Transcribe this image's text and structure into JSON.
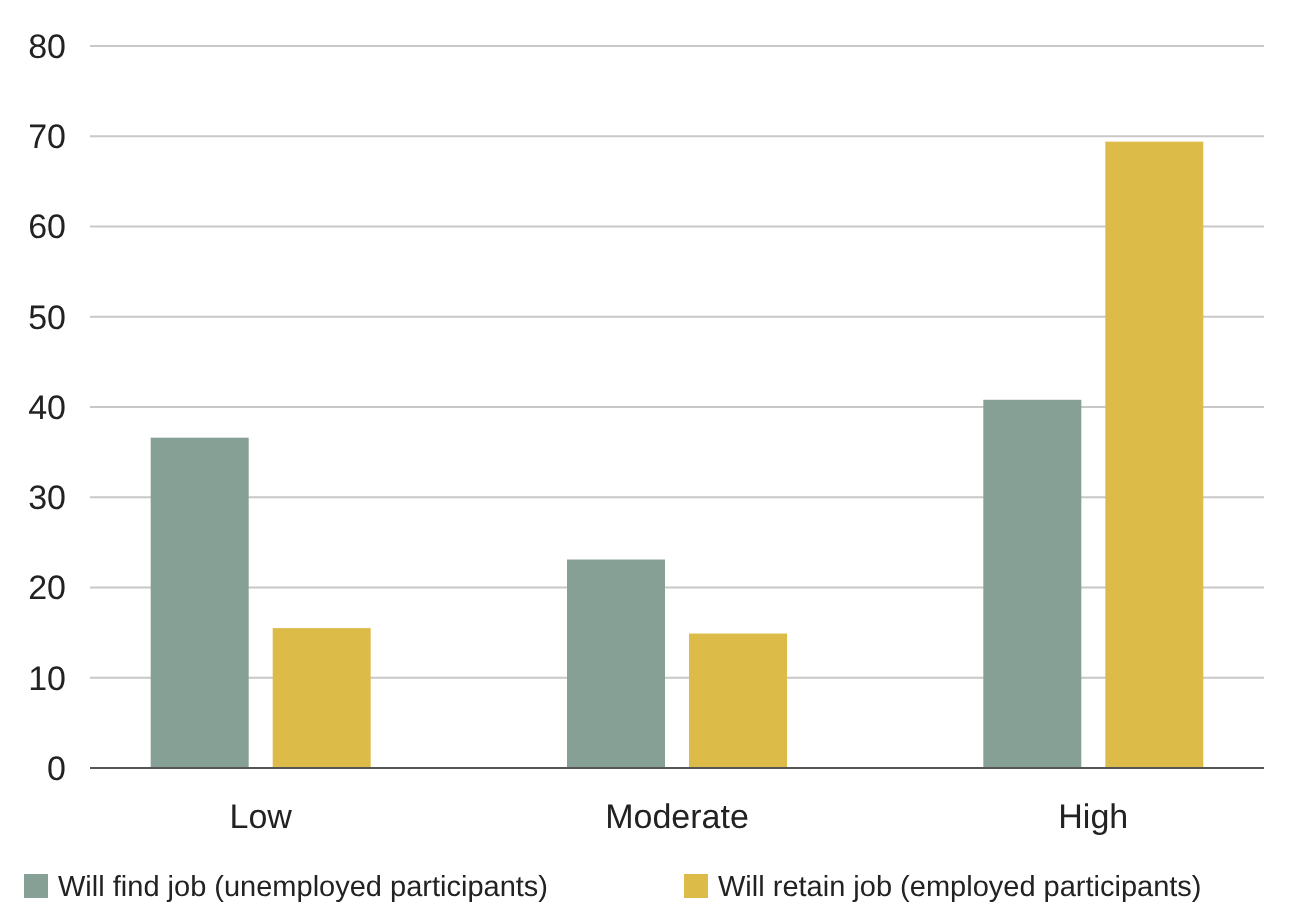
{
  "chart_data": {
    "type": "bar",
    "categories": [
      "Low",
      "Moderate",
      "High"
    ],
    "series": [
      {
        "name": "Will find job (unemployed participants)",
        "color": "#87a096",
        "values": [
          36.6,
          23.1,
          40.8
        ]
      },
      {
        "name": "Will retain job (employed participants)",
        "color": "#dcbb48",
        "values": [
          15.5,
          14.9,
          69.4
        ]
      }
    ],
    "ylim": [
      0,
      80
    ],
    "yticks": [
      0,
      10,
      20,
      30,
      40,
      50,
      60,
      70,
      80
    ],
    "grid": "y",
    "legend": "bottom"
  }
}
